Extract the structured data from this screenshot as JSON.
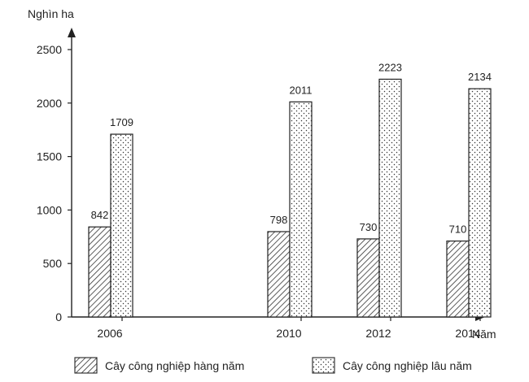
{
  "chart_data": {
    "type": "bar",
    "ylabel": "Nghìn ha",
    "xlabel": "Năm",
    "ylim": [
      0,
      2500
    ],
    "yticks": [
      0,
      500,
      1000,
      1500,
      2000,
      2500
    ],
    "categories": [
      "2006",
      "2010",
      "2012",
      "2014"
    ],
    "x": [
      2006,
      2010,
      2012,
      2014
    ],
    "series": [
      {
        "name": "Cây công nghiệp hàng năm",
        "values": [
          842,
          798,
          730,
          710
        ],
        "pattern": "diagonal-hatch"
      },
      {
        "name": "Cây công nghiệp lâu năm",
        "values": [
          1709,
          2011,
          2223,
          2134
        ],
        "pattern": "dots"
      }
    ],
    "grid": false,
    "legend_position": "bottom",
    "colors": {
      "ink": "#222222",
      "background": "#ffffff"
    }
  }
}
